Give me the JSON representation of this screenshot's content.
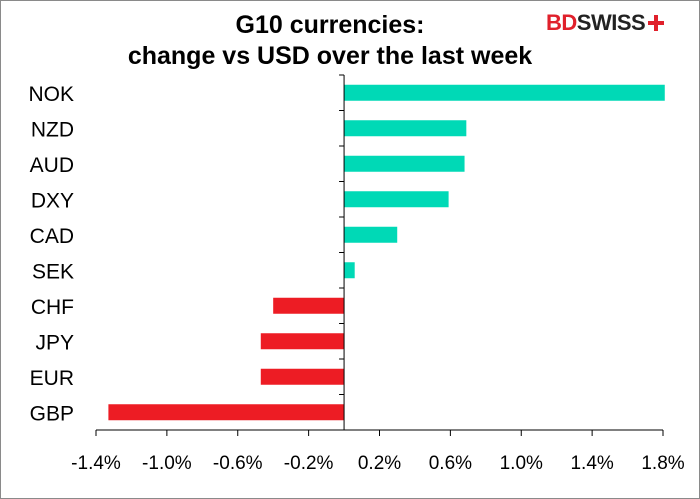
{
  "title_line1": "G10 currencies:",
  "title_line2": "change vs USD over the last week",
  "logo": {
    "part1": "BD",
    "part2": "SWISS",
    "icon": "plus-cross-icon"
  },
  "colors": {
    "positive": "#00d9b6",
    "negative": "#ed1c24",
    "axis": "#000000"
  },
  "chart_data": {
    "type": "bar",
    "orientation": "horizontal",
    "title": "G10 currencies: change vs USD over the last week",
    "categories": [
      "NOK",
      "NZD",
      "AUD",
      "DXY",
      "CAD",
      "SEK",
      "CHF",
      "JPY",
      "EUR",
      "GBP"
    ],
    "values": [
      1.81,
      0.69,
      0.68,
      0.59,
      0.3,
      0.06,
      -0.4,
      -0.47,
      -0.47,
      -1.33
    ],
    "xlim": [
      -1.4,
      1.8
    ],
    "xticks": [
      "-1.4%",
      "-1.0%",
      "-0.6%",
      "-0.2%",
      "0.2%",
      "0.6%",
      "1.0%",
      "1.4%",
      "1.8%"
    ],
    "grid": false,
    "legend": "none"
  }
}
